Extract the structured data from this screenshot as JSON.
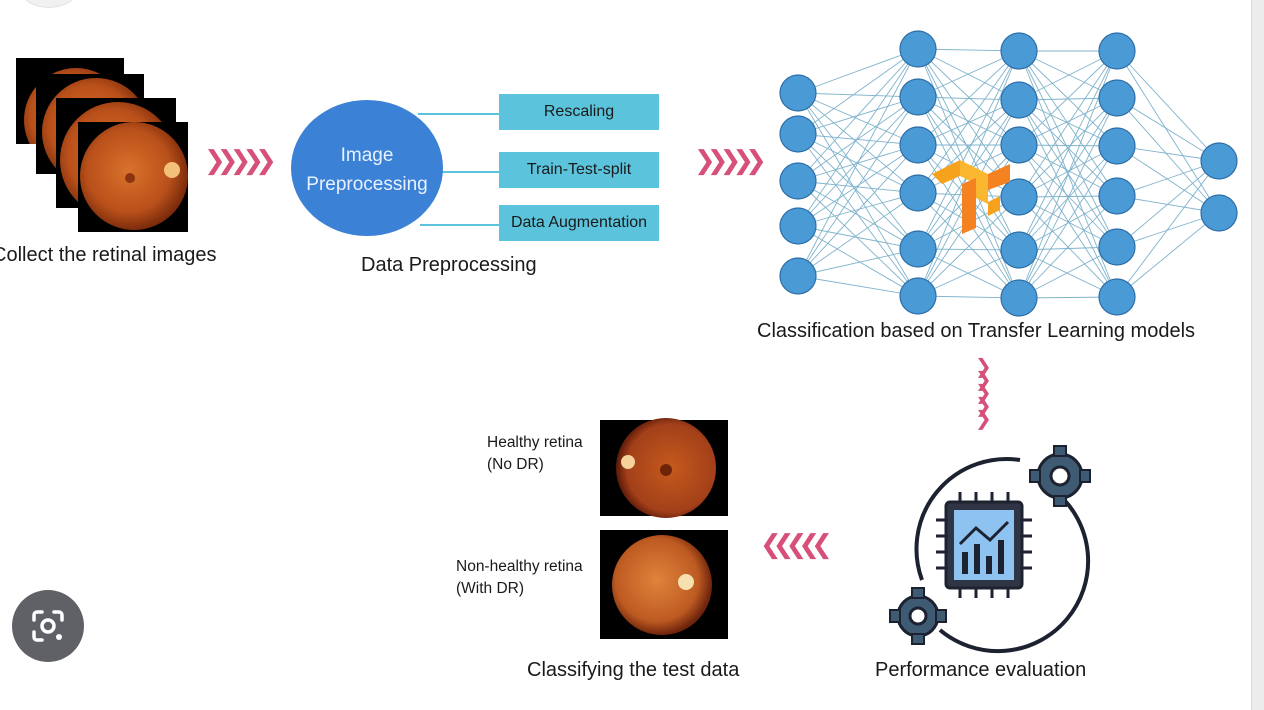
{
  "labels": {
    "collect": "Collect the retinal images",
    "data_preprocessing": "Data Preprocessing",
    "image_preprocessing_line1": "Image",
    "image_preprocessing_line2": "Preprocessing",
    "classification": "Classification based on Transfer Learning models",
    "performance": "Performance evaluation",
    "classifying": "Classifying the test data"
  },
  "preprocessing_steps": [
    "Rescaling",
    "Train-Test-split",
    "Data Augmentation"
  ],
  "test_results": [
    {
      "line1": "Healthy retina",
      "line2": "(No DR)"
    },
    {
      "line1": "Non-healthy retina",
      "line2": "(With DR)"
    }
  ],
  "colors": {
    "arrow": "#d6507a",
    "node": "#4a9ad6",
    "box": "#5bc4dc",
    "circle": "#3b82d6",
    "retina": "#c85a1e"
  },
  "icons": [
    "lens-search-icon",
    "gear-icon",
    "chip-chart-icon",
    "tensorflow-logo"
  ]
}
